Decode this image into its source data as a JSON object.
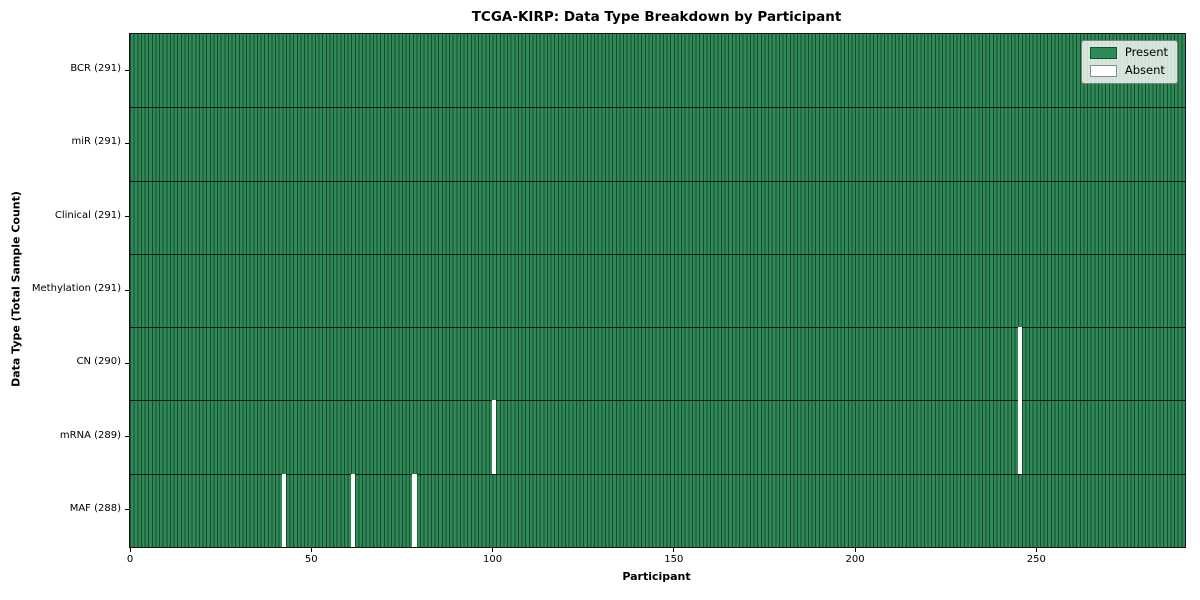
{
  "title": "TCGA-KIRP: Data Type Breakdown by Participant",
  "chart_data": {
    "type": "heatmap",
    "title": "TCGA-KIRP: Data Type Breakdown by Participant",
    "xlabel": "Participant",
    "ylabel": "Data Type (Total Sample Count)",
    "x_range": [
      0,
      291
    ],
    "x_ticks": [
      0,
      50,
      100,
      150,
      200,
      250
    ],
    "total_participants": 291,
    "grid": false,
    "legend": {
      "position": "upper right",
      "entries": [
        {
          "id": "present",
          "label": "Present",
          "color": "#2e8b57"
        },
        {
          "id": "absent",
          "label": "Absent",
          "color": "#ffffff"
        }
      ]
    },
    "colors": {
      "present": "#2e8b57",
      "absent": "#ffffff",
      "bar_edge": "#1b4a2f",
      "row_separator": "#000000",
      "spine": "#141414"
    },
    "rows": [
      {
        "data_type": "BCR",
        "label": "BCR (291)",
        "present_count": 291,
        "absent_participants": []
      },
      {
        "data_type": "miR",
        "label": "miR (291)",
        "present_count": 291,
        "absent_participants": []
      },
      {
        "data_type": "Clinical",
        "label": "Clinical (291)",
        "present_count": 291,
        "absent_participants": []
      },
      {
        "data_type": "Methylation",
        "label": "Methylation (291)",
        "present_count": 291,
        "absent_participants": []
      },
      {
        "data_type": "CN",
        "label": "CN (290)",
        "present_count": 290,
        "absent_participants": [
          245
        ]
      },
      {
        "data_type": "mRNA",
        "label": "mRNA (289)",
        "present_count": 289,
        "absent_participants": [
          100,
          245
        ]
      },
      {
        "data_type": "MAF",
        "label": "MAF (288)",
        "present_count": 288,
        "absent_participants": [
          42,
          61,
          78
        ]
      }
    ]
  }
}
